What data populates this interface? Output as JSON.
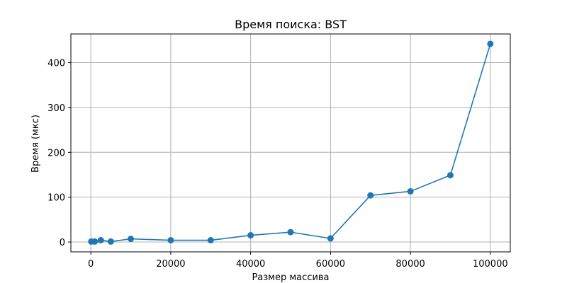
{
  "chart_data": {
    "type": "line",
    "title": "Время поиска: BST",
    "xlabel": "Размер массива",
    "ylabel": "Время (мкс)",
    "xlim": [
      -5000,
      105000
    ],
    "ylim": [
      -22,
      464
    ],
    "xticks": [
      0,
      20000,
      40000,
      60000,
      80000,
      100000
    ],
    "yticks": [
      0,
      100,
      200,
      300,
      400
    ],
    "grid": true,
    "color": "#1f77b4",
    "marker": "circle",
    "series": [
      {
        "x": [
          100,
          1000,
          2500,
          5000,
          10000,
          20000,
          30000,
          40000,
          50000,
          60000,
          70000,
          80000,
          90000,
          100000
        ],
        "y": [
          1,
          1,
          4,
          1,
          7,
          4,
          4,
          15,
          22,
          8,
          104,
          113,
          149,
          442
        ]
      }
    ]
  }
}
